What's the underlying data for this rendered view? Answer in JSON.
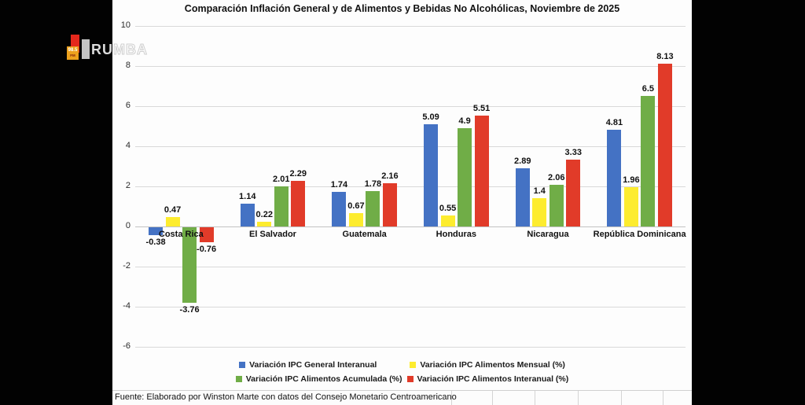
{
  "watermark": {
    "station": "98.5",
    "fm": "FM",
    "name_solid": "RU",
    "name_outline": "MBA"
  },
  "chart_data": {
    "type": "bar",
    "title": "Comparación Inflación General y de Alimentos y Bebidas No Alcohólicas, Noviembre de 2025",
    "categories": [
      "Costa Rica",
      "El Salvador",
      "Guatemala",
      "Honduras",
      "Nicaragua",
      "República Dominicana"
    ],
    "series": [
      {
        "name": "Variación IPC General Interanual",
        "color": "#4472c4",
        "values": [
          -0.38,
          1.14,
          1.74,
          5.09,
          2.89,
          4.81
        ]
      },
      {
        "name": "Variación IPC Alimentos Mensual (%)",
        "color": "#fdec2f",
        "values": [
          0.47,
          0.22,
          0.67,
          0.55,
          1.4,
          1.96
        ]
      },
      {
        "name": "Variación IPC Alimentos Acumulada (%)",
        "color": "#70ad47",
        "values": [
          -3.76,
          2.01,
          1.78,
          4.9,
          2.06,
          6.5
        ]
      },
      {
        "name": "Variación IPC Alimentos Interanual (%)",
        "color": "#e13b29",
        "values": [
          -0.76,
          2.29,
          2.16,
          5.51,
          3.33,
          8.13
        ]
      }
    ],
    "ylim": [
      -6,
      10
    ],
    "yticks": [
      10,
      8,
      6,
      4,
      2,
      0,
      -2,
      -4,
      -6
    ],
    "grid": true,
    "legend_position": "bottom",
    "legend_rows": [
      [
        0,
        1
      ],
      [
        2,
        3
      ]
    ]
  },
  "source_note": "Fuente: Elaborado por Winston Marte con datos del Consejo Monetario Centroamericano"
}
